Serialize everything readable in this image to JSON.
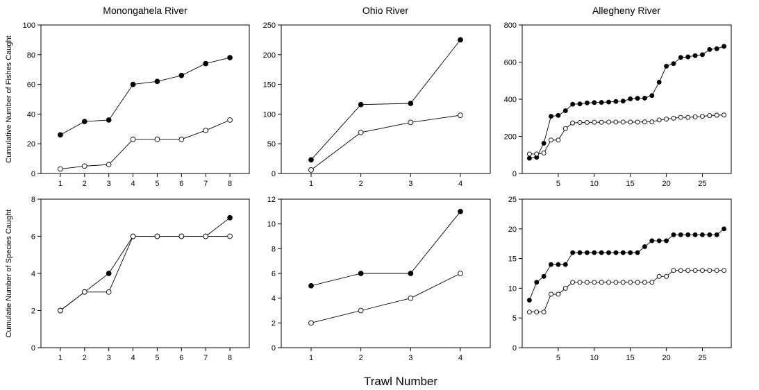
{
  "figure": {
    "xlabel": "Trawl Number",
    "ylabel_row1": "Cumulative Number of Fishes Caught",
    "ylabel_row2": "Cumulatie Number of Species Caught"
  },
  "chart_data": [
    {
      "type": "line",
      "title": "Monongahela River",
      "ylabel": "Cumulative Number of Fishes Caught",
      "xlim": [
        0.2,
        8.8
      ],
      "ylim": [
        0,
        100
      ],
      "xticks": [
        1,
        2,
        3,
        4,
        5,
        6,
        7,
        8
      ],
      "yticks": [
        0,
        20,
        40,
        60,
        80,
        100
      ],
      "x": [
        1,
        2,
        3,
        4,
        5,
        6,
        7,
        8
      ],
      "series": [
        {
          "marker": "filled",
          "values": [
            26,
            35,
            36,
            60,
            62,
            66,
            74,
            78
          ]
        },
        {
          "marker": "open",
          "values": [
            3,
            5,
            6,
            23,
            23,
            23,
            29,
            36
          ]
        }
      ]
    },
    {
      "type": "line",
      "title": "Ohio River",
      "ylabel": "",
      "xlim": [
        0.4,
        4.6
      ],
      "ylim": [
        0,
        250
      ],
      "xticks": [
        1,
        2,
        3,
        4
      ],
      "yticks": [
        0,
        50,
        100,
        150,
        200,
        250
      ],
      "x": [
        1,
        2,
        3,
        4
      ],
      "series": [
        {
          "marker": "filled",
          "values": [
            23,
            116,
            118,
            225
          ]
        },
        {
          "marker": "open",
          "values": [
            6,
            69,
            86,
            98
          ]
        }
      ]
    },
    {
      "type": "line",
      "title": "Allegheny River",
      "ylabel": "",
      "xlim": [
        0,
        29
      ],
      "ylim": [
        0,
        800
      ],
      "xticks": [
        5,
        10,
        15,
        20,
        25
      ],
      "yticks": [
        0,
        200,
        400,
        600,
        800
      ],
      "x": [
        1,
        2,
        3,
        4,
        5,
        6,
        7,
        8,
        9,
        10,
        11,
        12,
        13,
        14,
        15,
        16,
        17,
        18,
        19,
        20,
        21,
        22,
        23,
        24,
        25,
        26,
        27,
        28
      ],
      "series": [
        {
          "marker": "filled",
          "values": [
            82,
            87,
            163,
            308,
            313,
            338,
            373,
            375,
            380,
            382,
            383,
            385,
            388,
            390,
            402,
            405,
            406,
            420,
            492,
            578,
            592,
            625,
            628,
            635,
            640,
            668,
            672,
            685
          ]
        },
        {
          "marker": "open",
          "values": [
            105,
            105,
            110,
            180,
            180,
            242,
            272,
            275,
            275,
            276,
            276,
            277,
            277,
            277,
            277,
            277,
            278,
            278,
            288,
            293,
            298,
            302,
            302,
            305,
            308,
            312,
            314,
            315
          ]
        }
      ]
    },
    {
      "type": "line",
      "title": "",
      "ylabel": "Cumulatie Number of Species Caught",
      "xlim": [
        0.2,
        8.8
      ],
      "ylim": [
        0,
        8
      ],
      "xticks": [
        1,
        2,
        3,
        4,
        5,
        6,
        7,
        8
      ],
      "yticks": [
        0,
        2,
        4,
        6,
        8
      ],
      "x": [
        1,
        2,
        3,
        4,
        5,
        6,
        7,
        8
      ],
      "series": [
        {
          "marker": "filled",
          "values": [
            2,
            3,
            4,
            6,
            6,
            6,
            6,
            7
          ]
        },
        {
          "marker": "open",
          "values": [
            2,
            3,
            3,
            6,
            6,
            6,
            6,
            6
          ]
        }
      ]
    },
    {
      "type": "line",
      "title": "",
      "ylabel": "",
      "xlim": [
        0.4,
        4.6
      ],
      "ylim": [
        0,
        12
      ],
      "xticks": [
        1,
        2,
        3,
        4
      ],
      "yticks": [
        0,
        2,
        4,
        6,
        8,
        10,
        12
      ],
      "x": [
        1,
        2,
        3,
        4
      ],
      "series": [
        {
          "marker": "filled",
          "values": [
            5,
            6,
            6,
            11
          ]
        },
        {
          "marker": "open",
          "values": [
            2,
            3,
            4,
            6
          ]
        }
      ]
    },
    {
      "type": "line",
      "title": "",
      "ylabel": "",
      "xlim": [
        0,
        29
      ],
      "ylim": [
        0,
        25
      ],
      "xticks": [
        5,
        10,
        15,
        20,
        25
      ],
      "yticks": [
        0,
        5,
        10,
        15,
        20,
        25
      ],
      "x": [
        1,
        2,
        3,
        4,
        5,
        6,
        7,
        8,
        9,
        10,
        11,
        12,
        13,
        14,
        15,
        16,
        17,
        18,
        19,
        20,
        21,
        22,
        23,
        24,
        25,
        26,
        27,
        28
      ],
      "series": [
        {
          "marker": "filled",
          "values": [
            8,
            11,
            12,
            14,
            14,
            14,
            16,
            16,
            16,
            16,
            16,
            16,
            16,
            16,
            16,
            16,
            17,
            18,
            18,
            18,
            19,
            19,
            19,
            19,
            19,
            19,
            19,
            20
          ]
        },
        {
          "marker": "open",
          "values": [
            6,
            6,
            6,
            9,
            9,
            10,
            11,
            11,
            11,
            11,
            11,
            11,
            11,
            11,
            11,
            11,
            11,
            11,
            12,
            12,
            13,
            13,
            13,
            13,
            13,
            13,
            13,
            13
          ]
        }
      ]
    }
  ]
}
